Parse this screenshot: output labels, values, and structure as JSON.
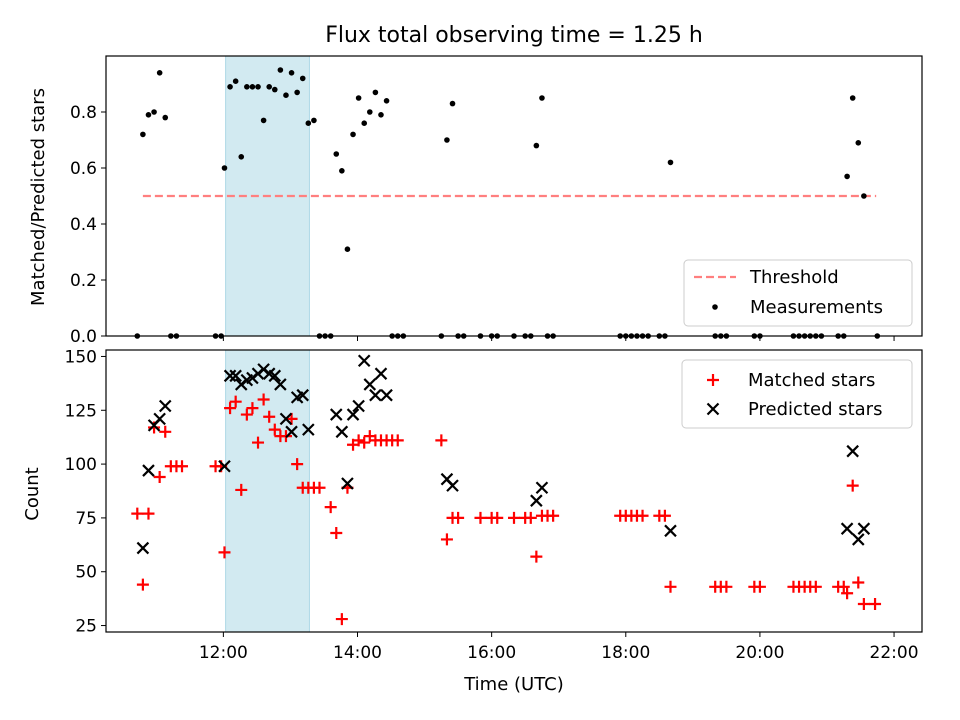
{
  "title": "Flux total observing time = 1.25 h",
  "top_ylabel": "Matched/Predicted stars",
  "bottom_ylabel": "Count",
  "xlabel": "Time (UTC)",
  "colors": {
    "threshold": "#ff7f7f",
    "measurement": "#000000",
    "matched": "#ff0000",
    "predicted": "#000000",
    "span": "#add8e6"
  },
  "chart_data": [
    {
      "type": "scatter",
      "panel": "top",
      "title": "Flux total observing time = 1.25 h",
      "xlabel": "",
      "ylabel": "Matched/Predicted stars",
      "xlim": [
        "10:15",
        "22:25"
      ],
      "ylim": [
        0,
        1.0
      ],
      "xticks": [
        "12:00",
        "14:00",
        "16:00",
        "18:00",
        "20:00",
        "22:00"
      ],
      "yticks": [
        "0.0",
        "0.2",
        "0.4",
        "0.6",
        "0.8"
      ],
      "shaded_span": [
        "12:02",
        "13:17"
      ],
      "legend_position": "lower-right",
      "legend": [
        "Threshold",
        "Measurements"
      ],
      "threshold": {
        "name": "Threshold",
        "y": 0.5,
        "x": [
          "10:48",
          "21:44"
        ]
      },
      "measurements": {
        "name": "Measurements",
        "points": [
          [
            "10:43",
            0.0
          ],
          [
            "10:48",
            0.72
          ],
          [
            "10:53",
            0.79
          ],
          [
            "10:58",
            0.8
          ],
          [
            "11:03",
            0.94
          ],
          [
            "11:08",
            0.78
          ],
          [
            "11:13",
            0.0
          ],
          [
            "11:18",
            0.0
          ],
          [
            "11:53",
            0.0
          ],
          [
            "11:58",
            0.0
          ],
          [
            "12:01",
            0.6
          ],
          [
            "12:06",
            0.89
          ],
          [
            "12:11",
            0.91
          ],
          [
            "12:16",
            0.64
          ],
          [
            "12:21",
            0.89
          ],
          [
            "12:26",
            0.89
          ],
          [
            "12:31",
            0.89
          ],
          [
            "12:36",
            0.77
          ],
          [
            "12:41",
            0.89
          ],
          [
            "12:46",
            0.88
          ],
          [
            "12:51",
            0.95
          ],
          [
            "12:56",
            0.86
          ],
          [
            "13:01",
            0.94
          ],
          [
            "13:06",
            0.87
          ],
          [
            "13:11",
            0.92
          ],
          [
            "13:16",
            0.76
          ],
          [
            "13:21",
            0.77
          ],
          [
            "13:26",
            0.0
          ],
          [
            "13:31",
            0.0
          ],
          [
            "13:36",
            0.0
          ],
          [
            "13:41",
            0.65
          ],
          [
            "13:46",
            0.59
          ],
          [
            "13:51",
            0.31
          ],
          [
            "13:56",
            0.72
          ],
          [
            "14:01",
            0.85
          ],
          [
            "14:06",
            0.76
          ],
          [
            "14:11",
            0.8
          ],
          [
            "14:16",
            0.87
          ],
          [
            "14:21",
            0.79
          ],
          [
            "14:26",
            0.84
          ],
          [
            "14:31",
            0.0
          ],
          [
            "14:36",
            0.0
          ],
          [
            "14:41",
            0.0
          ],
          [
            "15:15",
            0.0
          ],
          [
            "15:20",
            0.7
          ],
          [
            "15:25",
            0.83
          ],
          [
            "15:30",
            0.0
          ],
          [
            "15:35",
            0.0
          ],
          [
            "15:50",
            0.0
          ],
          [
            "16:00",
            0.0
          ],
          [
            "16:05",
            0.0
          ],
          [
            "16:20",
            0.0
          ],
          [
            "16:30",
            0.0
          ],
          [
            "16:35",
            0.0
          ],
          [
            "16:40",
            0.68
          ],
          [
            "16:45",
            0.85
          ],
          [
            "16:50",
            0.0
          ],
          [
            "16:55",
            0.0
          ],
          [
            "17:55",
            0.0
          ],
          [
            "18:00",
            0.0
          ],
          [
            "18:05",
            0.0
          ],
          [
            "18:10",
            0.0
          ],
          [
            "18:15",
            0.0
          ],
          [
            "18:20",
            0.0
          ],
          [
            "18:30",
            0.0
          ],
          [
            "18:35",
            0.0
          ],
          [
            "18:40",
            0.62
          ],
          [
            "19:20",
            0.0
          ],
          [
            "19:25",
            0.0
          ],
          [
            "19:30",
            0.0
          ],
          [
            "19:55",
            0.0
          ],
          [
            "20:00",
            0.0
          ],
          [
            "20:30",
            0.0
          ],
          [
            "20:35",
            0.0
          ],
          [
            "20:40",
            0.0
          ],
          [
            "20:45",
            0.0
          ],
          [
            "20:50",
            0.0
          ],
          [
            "20:55",
            0.0
          ],
          [
            "21:10",
            0.0
          ],
          [
            "21:15",
            0.0
          ],
          [
            "21:18",
            0.57
          ],
          [
            "21:23",
            0.85
          ],
          [
            "21:28",
            0.69
          ],
          [
            "21:33",
            0.5
          ],
          [
            "21:45",
            0.0
          ]
        ]
      }
    },
    {
      "type": "scatter",
      "panel": "bottom",
      "title": "",
      "xlabel": "Time (UTC)",
      "ylabel": "Count",
      "xlim": [
        "10:15",
        "22:25"
      ],
      "ylim": [
        22,
        153
      ],
      "xticks": [
        "12:00",
        "14:00",
        "16:00",
        "18:00",
        "20:00",
        "22:00"
      ],
      "yticks": [
        "25",
        "50",
        "75",
        "100",
        "125",
        "150"
      ],
      "shaded_span": [
        "12:02",
        "13:17"
      ],
      "legend_position": "upper-right",
      "legend": [
        "Matched stars",
        "Predicted stars"
      ],
      "series": [
        {
          "name": "Matched stars",
          "marker": "+",
          "points": [
            [
              "10:43",
              77
            ],
            [
              "10:48",
              44
            ],
            [
              "10:53",
              77
            ],
            [
              "10:58",
              117
            ],
            [
              "11:03",
              94
            ],
            [
              "11:08",
              115
            ],
            [
              "11:13",
              99
            ],
            [
              "11:18",
              99
            ],
            [
              "11:23",
              99
            ],
            [
              "11:53",
              99
            ],
            [
              "11:58",
              99
            ],
            [
              "12:01",
              59
            ],
            [
              "12:06",
              126
            ],
            [
              "12:11",
              129
            ],
            [
              "12:16",
              88
            ],
            [
              "12:21",
              123
            ],
            [
              "12:26",
              126
            ],
            [
              "12:31",
              110
            ],
            [
              "12:36",
              130
            ],
            [
              "12:41",
              122
            ],
            [
              "12:46",
              116
            ],
            [
              "12:51",
              113
            ],
            [
              "12:56",
              113
            ],
            [
              "13:01",
              121
            ],
            [
              "13:06",
              100
            ],
            [
              "13:11",
              89
            ],
            [
              "13:16",
              89
            ],
            [
              "13:21",
              89
            ],
            [
              "13:26",
              89
            ],
            [
              "13:36",
              80
            ],
            [
              "13:41",
              68
            ],
            [
              "13:46",
              28
            ],
            [
              "13:51",
              89
            ],
            [
              "13:56",
              109
            ],
            [
              "14:01",
              111
            ],
            [
              "14:06",
              110
            ],
            [
              "14:11",
              113
            ],
            [
              "14:16",
              111
            ],
            [
              "14:21",
              111
            ],
            [
              "14:26",
              111
            ],
            [
              "14:31",
              111
            ],
            [
              "14:36",
              111
            ],
            [
              "15:15",
              111
            ],
            [
              "15:20",
              65
            ],
            [
              "15:25",
              75
            ],
            [
              "15:30",
              75
            ],
            [
              "15:50",
              75
            ],
            [
              "16:00",
              75
            ],
            [
              "16:05",
              75
            ],
            [
              "16:20",
              75
            ],
            [
              "16:30",
              75
            ],
            [
              "16:35",
              75
            ],
            [
              "16:40",
              57
            ],
            [
              "16:45",
              76
            ],
            [
              "16:50",
              76
            ],
            [
              "16:55",
              76
            ],
            [
              "17:55",
              76
            ],
            [
              "18:00",
              76
            ],
            [
              "18:05",
              76
            ],
            [
              "18:10",
              76
            ],
            [
              "18:15",
              76
            ],
            [
              "18:30",
              76
            ],
            [
              "18:35",
              76
            ],
            [
              "18:40",
              43
            ],
            [
              "19:20",
              43
            ],
            [
              "19:25",
              43
            ],
            [
              "19:30",
              43
            ],
            [
              "19:55",
              43
            ],
            [
              "20:00",
              43
            ],
            [
              "20:30",
              43
            ],
            [
              "20:35",
              43
            ],
            [
              "20:40",
              43
            ],
            [
              "20:45",
              43
            ],
            [
              "20:50",
              43
            ],
            [
              "21:10",
              43
            ],
            [
              "21:15",
              43
            ],
            [
              "21:18",
              40
            ],
            [
              "21:23",
              90
            ],
            [
              "21:28",
              45
            ],
            [
              "21:33",
              35
            ],
            [
              "21:43",
              35
            ]
          ]
        },
        {
          "name": "Predicted stars",
          "marker": "x",
          "points": [
            [
              "10:48",
              61
            ],
            [
              "10:53",
              97
            ],
            [
              "10:58",
              118
            ],
            [
              "11:03",
              121
            ],
            [
              "11:08",
              127
            ],
            [
              "12:01",
              99
            ],
            [
              "12:06",
              141
            ],
            [
              "12:11",
              141
            ],
            [
              "12:16",
              137
            ],
            [
              "12:21",
              139
            ],
            [
              "12:26",
              140
            ],
            [
              "12:31",
              142
            ],
            [
              "12:36",
              144
            ],
            [
              "12:41",
              142
            ],
            [
              "12:46",
              141
            ],
            [
              "12:51",
              137
            ],
            [
              "12:56",
              121
            ],
            [
              "13:01",
              115
            ],
            [
              "13:06",
              131
            ],
            [
              "13:11",
              132
            ],
            [
              "13:16",
              116
            ],
            [
              "13:41",
              123
            ],
            [
              "13:46",
              115
            ],
            [
              "13:51",
              91
            ],
            [
              "13:56",
              123
            ],
            [
              "14:01",
              127
            ],
            [
              "14:06",
              148
            ],
            [
              "14:11",
              137
            ],
            [
              "14:16",
              132
            ],
            [
              "14:21",
              142
            ],
            [
              "14:26",
              132
            ],
            [
              "15:20",
              93
            ],
            [
              "15:25",
              90
            ],
            [
              "16:40",
              83
            ],
            [
              "16:45",
              89
            ],
            [
              "18:40",
              69
            ],
            [
              "21:18",
              70
            ],
            [
              "21:23",
              106
            ],
            [
              "21:28",
              65
            ],
            [
              "21:33",
              70
            ]
          ]
        }
      ]
    }
  ]
}
